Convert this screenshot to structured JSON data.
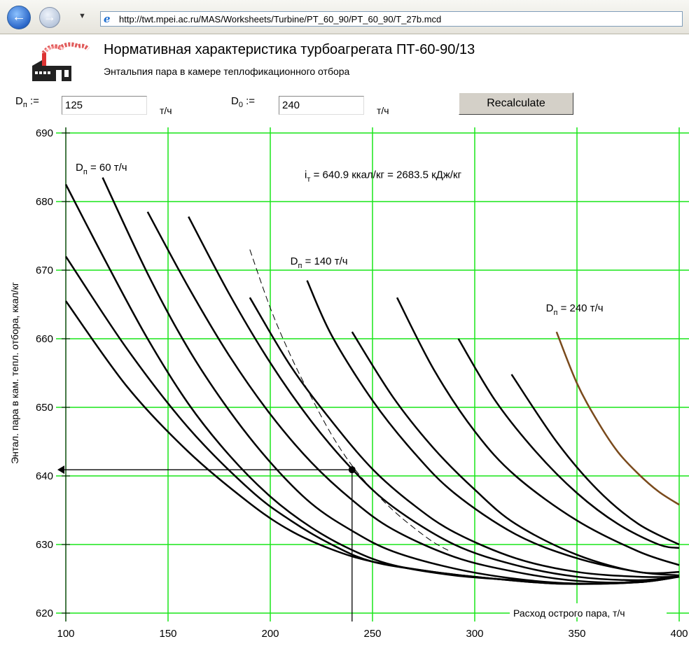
{
  "browser": {
    "url": "http://twt.mpei.ac.ru/MAS/Worksheets/Turbine/PT_60_90/PT_60_90/T_27b.mcd"
  },
  "header": {
    "title": "Нормативная характеристика турбоагрегата ПТ-60-90/13",
    "subtitle": "Энтальпия пара в камере теплофикационного отбора"
  },
  "inputs": {
    "dp_label": "D",
    "dp_sub": "п",
    "dp_assign": ":=",
    "dp_value": "125",
    "dp_unit": "т/ч",
    "d0_label": "D",
    "d0_sub": "0",
    "d0_assign": ":=",
    "d0_value": "240",
    "d0_unit": "т/ч",
    "recalc_label": "Recalculate"
  },
  "colors": {
    "grid": "#19e619",
    "curve": "#000000",
    "highlight": "#7a4a1c",
    "axis": "#000000"
  },
  "chart_data": {
    "type": "line",
    "xlabel": "Расход острого пара, т/ч",
    "ylabel": "Энтал. пара в кам. тепл. отбора, ккал/кг",
    "xlim": [
      100,
      400
    ],
    "ylim": [
      620,
      690
    ],
    "xticks": [
      100,
      150,
      200,
      250,
      300,
      350,
      400
    ],
    "yticks": [
      620,
      630,
      640,
      650,
      660,
      670,
      680,
      690
    ],
    "grid": true,
    "annotations": {
      "dp60": {
        "main": "D",
        "sub": "п",
        "tail": " = 60 т/ч",
        "x": 100,
        "y": 684.5
      },
      "dp140": {
        "main": "D",
        "sub": "п",
        "tail": " = 140 т/ч",
        "x": 205,
        "y": 670.8
      },
      "dp240": {
        "main": "D",
        "sub": "п",
        "tail": " = 240 т/ч",
        "x": 330,
        "y": 664
      },
      "result": {
        "main": "i",
        "sub": "т",
        "tail": " = 640.9 ккал/кг    = 2683.5 кДж/кг",
        "x": 212,
        "y": 683.4
      }
    },
    "operating_point": {
      "x": 240,
      "y": 640.9
    },
    "series": [
      {
        "x": [
          100,
          130,
          160,
          190,
          210,
          230,
          250,
          280,
          310,
          340,
          370,
          400
        ],
        "y": [
          665.5,
          653,
          643.5,
          636,
          632,
          629.3,
          627.5,
          626,
          625,
          624.3,
          624.4,
          625.3
        ]
      },
      {
        "x": [
          100,
          130,
          160,
          190,
          210,
          230,
          250,
          280,
          310,
          340,
          370,
          400
        ],
        "y": [
          672,
          658.5,
          647,
          638,
          633.5,
          630,
          627.5,
          626,
          625,
          624.3,
          624.4,
          625.3
        ]
      },
      {
        "x": [
          100,
          120,
          140,
          160,
          180,
          200,
          220,
          240,
          260,
          290,
          320,
          350,
          380,
          400
        ],
        "y": [
          682.5,
          671,
          660,
          650.5,
          643,
          637,
          632.5,
          629.2,
          627,
          625.5,
          624.8,
          624.3,
          624.5,
          625.3
        ]
      },
      {
        "x": [
          118,
          140,
          160,
          180,
          200,
          220,
          240,
          260,
          290,
          320,
          350,
          380,
          400
        ],
        "y": [
          683.5,
          669.5,
          658.5,
          649.5,
          642,
          636,
          632,
          629,
          626.5,
          625,
          624.3,
          624.5,
          625.3
        ]
      },
      {
        "x": [
          140,
          160,
          180,
          200,
          220,
          240,
          260,
          290,
          320,
          350,
          380,
          400
        ],
        "y": [
          678.5,
          667.5,
          657.5,
          649,
          642,
          636.5,
          632.2,
          628.2,
          626,
          624.7,
          624.5,
          625.3
        ]
      },
      {
        "x": [
          160,
          180,
          200,
          220,
          240,
          260,
          290,
          320,
          350,
          380,
          400
        ],
        "y": [
          677.8,
          666.5,
          656.5,
          648,
          641,
          635.5,
          630,
          627,
          625.3,
          624.8,
          625.3
        ]
      },
      {
        "x": [
          190,
          210,
          230,
          250,
          270,
          290,
          320,
          350,
          380,
          400
        ],
        "y": [
          666,
          656,
          648,
          641,
          635.8,
          631.8,
          628,
          626,
          625.3,
          625.3
        ]
      },
      {
        "x": [
          218,
          230,
          250,
          270,
          290,
          320,
          350,
          380,
          400
        ],
        "y": [
          668.5,
          660.5,
          651,
          643.5,
          637.5,
          631.5,
          628,
          626,
          625.5
        ]
      },
      {
        "x": [
          240,
          260,
          280,
          300,
          320,
          350,
          380,
          400
        ],
        "y": [
          661,
          651.5,
          644,
          638,
          633,
          628.5,
          626,
          626
        ]
      },
      {
        "x": [
          262,
          280,
          300,
          320,
          350,
          380,
          400
        ],
        "y": [
          666,
          655.5,
          646.5,
          640,
          633.5,
          629,
          627
        ]
      },
      {
        "x": [
          292,
          310,
          330,
          350,
          370,
          390,
          400
        ],
        "y": [
          660,
          651,
          643.5,
          637.5,
          633,
          630,
          629.5
        ]
      },
      {
        "x": [
          318,
          340,
          360,
          380,
          400
        ],
        "y": [
          654.8,
          645,
          638,
          633,
          630
        ]
      },
      {
        "x": [
          340,
          350,
          360,
          370,
          380,
          390,
          400
        ],
        "y": [
          661,
          653.5,
          648,
          643.5,
          640.3,
          637.7,
          635.8
        ],
        "highlight": true
      }
    ],
    "dashed_series": {
      "x": [
        190,
        200,
        210,
        220,
        230,
        240,
        250,
        260,
        270,
        280,
        288
      ],
      "y": [
        673,
        664.5,
        657.5,
        651.5,
        646,
        641.5,
        638,
        635,
        632.5,
        630.3,
        629
      ]
    }
  }
}
